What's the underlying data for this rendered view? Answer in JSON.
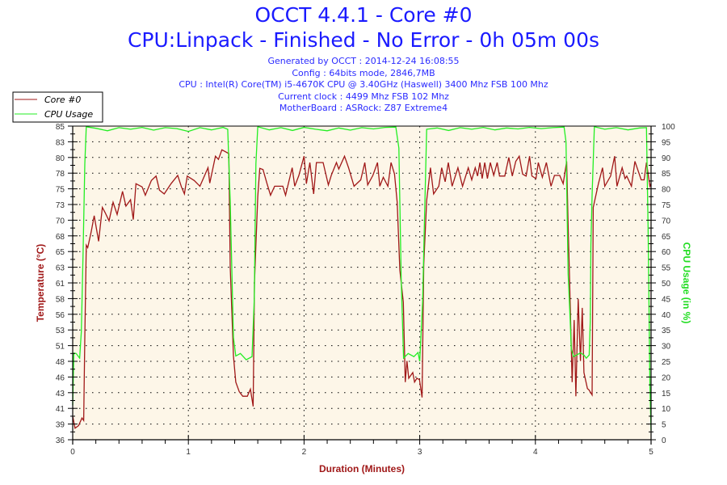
{
  "header": {
    "title": "OCCT 4.4.1 - Core #0",
    "subtitle": "CPU:Linpack - Finished - No Error - 0h 05m 00s",
    "info": [
      "Generated by OCCT : 2014-12-24 16:08:55",
      "Config : 64bits mode, 2846,7MB",
      "CPU : Intel(R) Core(TM) i5-4670K CPU @ 3.40GHz (Haswell) 3400 Mhz FSB 100 Mhz",
      "Current clock : 4499 Mhz FSB 102 Mhz",
      "MotherBoard : ASRock: Z87 Extreme4"
    ]
  },
  "colors": {
    "temp": "#a01818",
    "cpu": "#22ee22",
    "plot_bg": "#fdf6e8",
    "title": "#1a1aff"
  },
  "chart_data": {
    "type": "line",
    "title": "OCCT 4.4.1 - Core #0",
    "xlabel": "Duration (Minutes)",
    "ylabel": "Temperature (°C)",
    "y2label": "CPU Usage (in %)",
    "xlim": [
      0,
      5
    ],
    "ylim": [
      36,
      85
    ],
    "y2lim": [
      0,
      100
    ],
    "x_ticks": [
      "0",
      "1",
      "2",
      "3",
      "4",
      "5"
    ],
    "y_ticks": [
      "36",
      "39",
      "41",
      "43",
      "46",
      "48",
      "51",
      "53",
      "56",
      "58",
      "61",
      "63",
      "65",
      "68",
      "70",
      "73",
      "75",
      "78",
      "80",
      "83",
      "85"
    ],
    "y2_ticks": [
      "0",
      "5",
      "10",
      "15",
      "20",
      "25",
      "30",
      "35",
      "40",
      "45",
      "50",
      "55",
      "60",
      "65",
      "70",
      "75",
      "80",
      "85",
      "90",
      "95",
      "100"
    ],
    "grid": true,
    "legend": {
      "position": "top-left",
      "entries": [
        "Core #0",
        "CPU Usage"
      ]
    },
    "series": [
      {
        "name": "Core #0",
        "axis": "left",
        "points": [
          [
            0,
            39.7
          ],
          [
            0.02,
            37.8
          ],
          [
            0.05,
            38.2
          ],
          [
            0.08,
            39.4
          ],
          [
            0.095,
            39
          ],
          [
            0.105,
            52
          ],
          [
            0.117,
            66.4
          ],
          [
            0.13,
            66
          ],
          [
            0.16,
            68.5
          ],
          [
            0.186,
            71
          ],
          [
            0.224,
            67
          ],
          [
            0.256,
            72.3
          ],
          [
            0.28,
            71.5
          ],
          [
            0.314,
            70.2
          ],
          [
            0.349,
            73.1
          ],
          [
            0.384,
            71.2
          ],
          [
            0.431,
            74.8
          ],
          [
            0.46,
            72.5
          ],
          [
            0.5,
            73.5
          ],
          [
            0.524,
            70.4
          ],
          [
            0.547,
            76
          ],
          [
            0.6,
            75.5
          ],
          [
            0.628,
            74.2
          ],
          [
            0.68,
            76.5
          ],
          [
            0.721,
            77.2
          ],
          [
            0.75,
            75
          ],
          [
            0.791,
            74.4
          ],
          [
            0.85,
            76
          ],
          [
            0.908,
            77.3
          ],
          [
            0.94,
            75.5
          ],
          [
            0.966,
            74.4
          ],
          [
            0.99,
            77.2
          ],
          [
            1.05,
            76.5
          ],
          [
            1.1,
            75.6
          ],
          [
            1.17,
            78.5
          ],
          [
            1.185,
            76.1
          ],
          [
            1.234,
            80.3
          ],
          [
            1.26,
            79.8
          ],
          [
            1.29,
            81.3
          ],
          [
            1.35,
            80.7
          ],
          [
            1.362,
            63
          ],
          [
            1.39,
            49.1
          ],
          [
            1.41,
            45
          ],
          [
            1.44,
            43.5
          ],
          [
            1.47,
            42.8
          ],
          [
            1.51,
            42.8
          ],
          [
            1.536,
            43.9
          ],
          [
            1.56,
            41.2
          ],
          [
            1.571,
            60.5
          ],
          [
            1.6,
            74
          ],
          [
            1.617,
            78.4
          ],
          [
            1.645,
            78.2
          ],
          [
            1.68,
            76
          ],
          [
            1.71,
            74.2
          ],
          [
            1.746,
            75.6
          ],
          [
            1.816,
            75.6
          ],
          [
            1.84,
            74.2
          ],
          [
            1.897,
            78.5
          ],
          [
            1.92,
            75.6
          ],
          [
            1.955,
            77.3
          ],
          [
            2.0,
            80.3
          ],
          [
            2.02,
            76
          ],
          [
            2.05,
            79.3
          ],
          [
            2.083,
            74.4
          ],
          [
            2.107,
            79.3
          ],
          [
            2.165,
            79.3
          ],
          [
            2.21,
            75.8
          ],
          [
            2.235,
            77.3
          ],
          [
            2.28,
            79.3
          ],
          [
            2.3,
            78.3
          ],
          [
            2.35,
            80.3
          ],
          [
            2.385,
            78.5
          ],
          [
            2.432,
            75.6
          ],
          [
            2.49,
            76.6
          ],
          [
            2.525,
            79.3
          ],
          [
            2.55,
            75.8
          ],
          [
            2.595,
            77.3
          ],
          [
            2.635,
            79.3
          ],
          [
            2.655,
            75.6
          ],
          [
            2.685,
            77
          ],
          [
            2.725,
            75.6
          ],
          [
            2.752,
            79.3
          ],
          [
            2.782,
            77.5
          ],
          [
            2.805,
            73.1
          ],
          [
            2.828,
            62.5
          ],
          [
            2.858,
            57.5
          ],
          [
            2.875,
            45
          ],
          [
            2.89,
            48.3
          ],
          [
            2.905,
            45.6
          ],
          [
            2.94,
            46.5
          ],
          [
            2.955,
            45
          ],
          [
            2.975,
            45.6
          ],
          [
            2.998,
            45.4
          ],
          [
            3.02,
            42.6
          ],
          [
            3.035,
            63.4
          ],
          [
            3.06,
            73.4
          ],
          [
            3.093,
            78.5
          ],
          [
            3.12,
            74.4
          ],
          [
            3.165,
            75.6
          ],
          [
            3.19,
            78.5
          ],
          [
            3.22,
            76.3
          ],
          [
            3.247,
            79.3
          ],
          [
            3.28,
            75.6
          ],
          [
            3.33,
            78.5
          ],
          [
            3.37,
            75.6
          ],
          [
            3.42,
            78.5
          ],
          [
            3.45,
            76.6
          ],
          [
            3.48,
            78.5
          ],
          [
            3.5,
            77.2
          ],
          [
            3.52,
            79.3
          ],
          [
            3.54,
            76.8
          ],
          [
            3.562,
            79.3
          ],
          [
            3.585,
            76.8
          ],
          [
            3.61,
            79.3
          ],
          [
            3.64,
            77.3
          ],
          [
            3.67,
            79.3
          ],
          [
            3.69,
            77.2
          ],
          [
            3.735,
            77.2
          ],
          [
            3.77,
            80.1
          ],
          [
            3.8,
            77.2
          ],
          [
            3.83,
            79.5
          ],
          [
            3.86,
            80.3
          ],
          [
            3.89,
            77.5
          ],
          [
            3.92,
            77.2
          ],
          [
            3.95,
            80.3
          ],
          [
            3.97,
            77.2
          ],
          [
            4.005,
            76.8
          ],
          [
            4.025,
            79.3
          ],
          [
            4.06,
            77
          ],
          [
            4.095,
            79.3
          ],
          [
            4.135,
            75.6
          ],
          [
            4.165,
            77.3
          ],
          [
            4.21,
            77.3
          ],
          [
            4.24,
            76
          ],
          [
            4.27,
            79.5
          ],
          [
            4.283,
            69.6
          ],
          [
            4.294,
            62.1
          ],
          [
            4.318,
            45
          ],
          [
            4.335,
            54.7
          ],
          [
            4.35,
            42.8
          ],
          [
            4.37,
            58
          ],
          [
            4.39,
            48.3
          ],
          [
            4.405,
            56.6
          ],
          [
            4.42,
            46.5
          ],
          [
            4.45,
            44
          ],
          [
            4.462,
            43.8
          ],
          [
            4.49,
            43
          ],
          [
            4.5,
            72.3
          ],
          [
            4.545,
            76
          ],
          [
            4.58,
            78.5
          ],
          [
            4.6,
            75.6
          ],
          [
            4.65,
            77.2
          ],
          [
            4.685,
            80.3
          ],
          [
            4.705,
            75.6
          ],
          [
            4.75,
            78.5
          ],
          [
            4.775,
            76.8
          ],
          [
            4.79,
            77.2
          ],
          [
            4.83,
            75.6
          ],
          [
            4.86,
            79.5
          ],
          [
            4.915,
            76.6
          ],
          [
            4.94,
            76.6
          ],
          [
            4.96,
            79.3
          ],
          [
            4.99,
            75.6
          ],
          [
            5.0,
            76
          ]
        ]
      },
      {
        "name": "CPU Usage",
        "axis": "right",
        "points": [
          [
            0,
            11
          ],
          [
            0.01,
            27.6
          ],
          [
            0.03,
            27.5
          ],
          [
            0.06,
            26
          ],
          [
            0.075,
            34.5
          ],
          [
            0.09,
            60
          ],
          [
            0.105,
            88
          ],
          [
            0.117,
            99.8
          ],
          [
            0.2,
            99.3
          ],
          [
            0.3,
            98.5
          ],
          [
            0.4,
            99.5
          ],
          [
            0.5,
            99
          ],
          [
            0.6,
            99.6
          ],
          [
            0.7,
            98.7
          ],
          [
            0.8,
            99.5
          ],
          [
            0.9,
            99.2
          ],
          [
            1.0,
            98.3
          ],
          [
            1.1,
            99.5
          ],
          [
            1.2,
            98.8
          ],
          [
            1.3,
            99.6
          ],
          [
            1.34,
            99
          ],
          [
            1.362,
            76
          ],
          [
            1.39,
            32.6
          ],
          [
            1.41,
            26.7
          ],
          [
            1.45,
            27.5
          ],
          [
            1.5,
            25.5
          ],
          [
            1.55,
            26.5
          ],
          [
            1.57,
            45
          ],
          [
            1.584,
            88
          ],
          [
            1.6,
            99.8
          ],
          [
            1.7,
            98.8
          ],
          [
            1.8,
            99.5
          ],
          [
            1.9,
            98.6
          ],
          [
            2.0,
            99.6
          ],
          [
            2.1,
            99
          ],
          [
            2.2,
            98.5
          ],
          [
            2.3,
            99.4
          ],
          [
            2.4,
            98.7
          ],
          [
            2.5,
            99.5
          ],
          [
            2.6,
            99.1
          ],
          [
            2.7,
            99.6
          ],
          [
            2.793,
            99.7
          ],
          [
            2.82,
            93
          ],
          [
            2.84,
            51
          ],
          [
            2.86,
            26
          ],
          [
            2.9,
            27.5
          ],
          [
            2.95,
            26.5
          ],
          [
            2.985,
            27.8
          ],
          [
            3.0,
            25
          ],
          [
            3.025,
            44
          ],
          [
            3.04,
            68
          ],
          [
            3.06,
            99
          ],
          [
            3.15,
            99.4
          ],
          [
            3.25,
            98.6
          ],
          [
            3.35,
            99.5
          ],
          [
            3.45,
            99
          ],
          [
            3.55,
            99.6
          ],
          [
            3.65,
            98.8
          ],
          [
            3.75,
            99.4
          ],
          [
            3.85,
            99.1
          ],
          [
            3.95,
            99.6
          ],
          [
            4.05,
            99.2
          ],
          [
            4.15,
            99.5
          ],
          [
            4.248,
            99.7
          ],
          [
            4.265,
            95
          ],
          [
            4.283,
            53
          ],
          [
            4.3,
            38.5
          ],
          [
            4.31,
            29
          ],
          [
            4.33,
            26.5
          ],
          [
            4.39,
            27.7
          ],
          [
            4.42,
            27
          ],
          [
            4.44,
            26
          ],
          [
            4.465,
            27
          ],
          [
            4.475,
            38.5
          ],
          [
            4.48,
            62
          ],
          [
            4.49,
            78
          ],
          [
            4.51,
            99.8
          ],
          [
            4.6,
            99
          ],
          [
            4.7,
            99.5
          ],
          [
            4.8,
            98.8
          ],
          [
            4.9,
            99.4
          ],
          [
            4.96,
            99.5
          ],
          [
            4.975,
            66
          ],
          [
            4.99,
            17
          ],
          [
            5.0,
            3
          ]
        ]
      }
    ]
  }
}
